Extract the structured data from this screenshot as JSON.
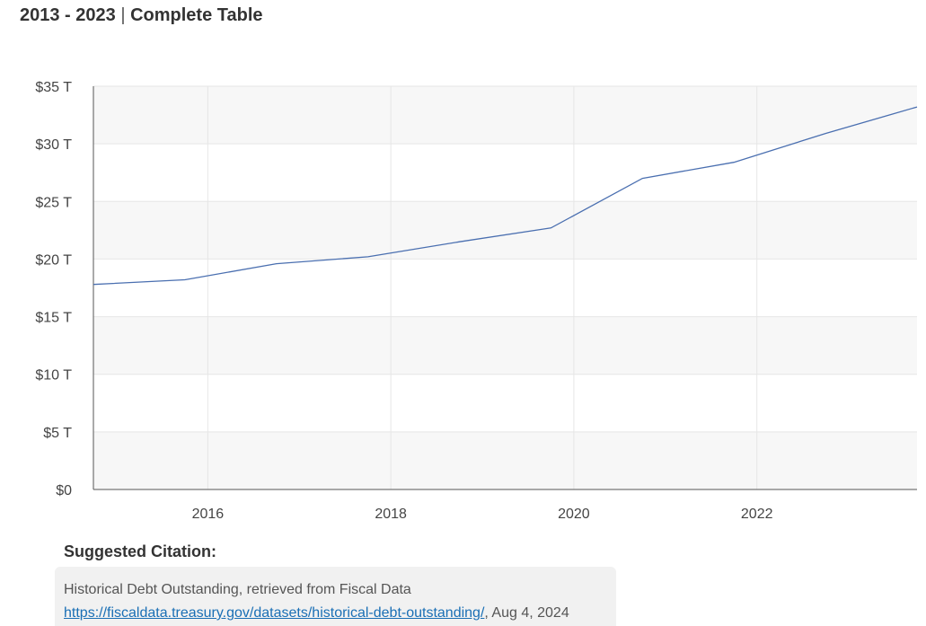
{
  "header": {
    "year_range": "2013 - 2023",
    "separator": "|",
    "view_label": "Complete Table"
  },
  "chart_data": {
    "type": "line",
    "title": "",
    "xlabel": "",
    "ylabel": "",
    "x": [
      2014.75,
      2015.75,
      2016.75,
      2017.75,
      2018.75,
      2019.75,
      2020.75,
      2021.75,
      2022.75,
      2023.75
    ],
    "series": [
      {
        "values": [
          17.8,
          18.2,
          19.6,
          20.2,
          21.5,
          22.7,
          27.0,
          28.4,
          30.9,
          33.2
        ],
        "color": "#4a6fb0"
      }
    ],
    "xlim": [
      2014.75,
      2023.75
    ],
    "ylim": [
      0,
      35
    ],
    "x_ticks": [
      2016,
      2018,
      2020,
      2022
    ],
    "x_tick_labels": [
      "2016",
      "2018",
      "2020",
      "2022"
    ],
    "y_ticks": [
      0,
      5,
      10,
      15,
      20,
      25,
      30,
      35
    ],
    "y_tick_labels": [
      "$0",
      "$5 T",
      "$10 T",
      "$15 T",
      "$20 T",
      "$25 T",
      "$30 T",
      "$35 T"
    ],
    "grid": true,
    "band_color": "#f7f7f7",
    "grid_color": "#e6e6e6",
    "axis_color": "#555555"
  },
  "citation": {
    "heading": "Suggested Citation:",
    "text": "Historical Debt Outstanding, retrieved from Fiscal Data",
    "url": "https://fiscaldata.treasury.gov/datasets/historical-debt-outstanding/",
    "date_suffix": ", Aug 4, 2024"
  }
}
